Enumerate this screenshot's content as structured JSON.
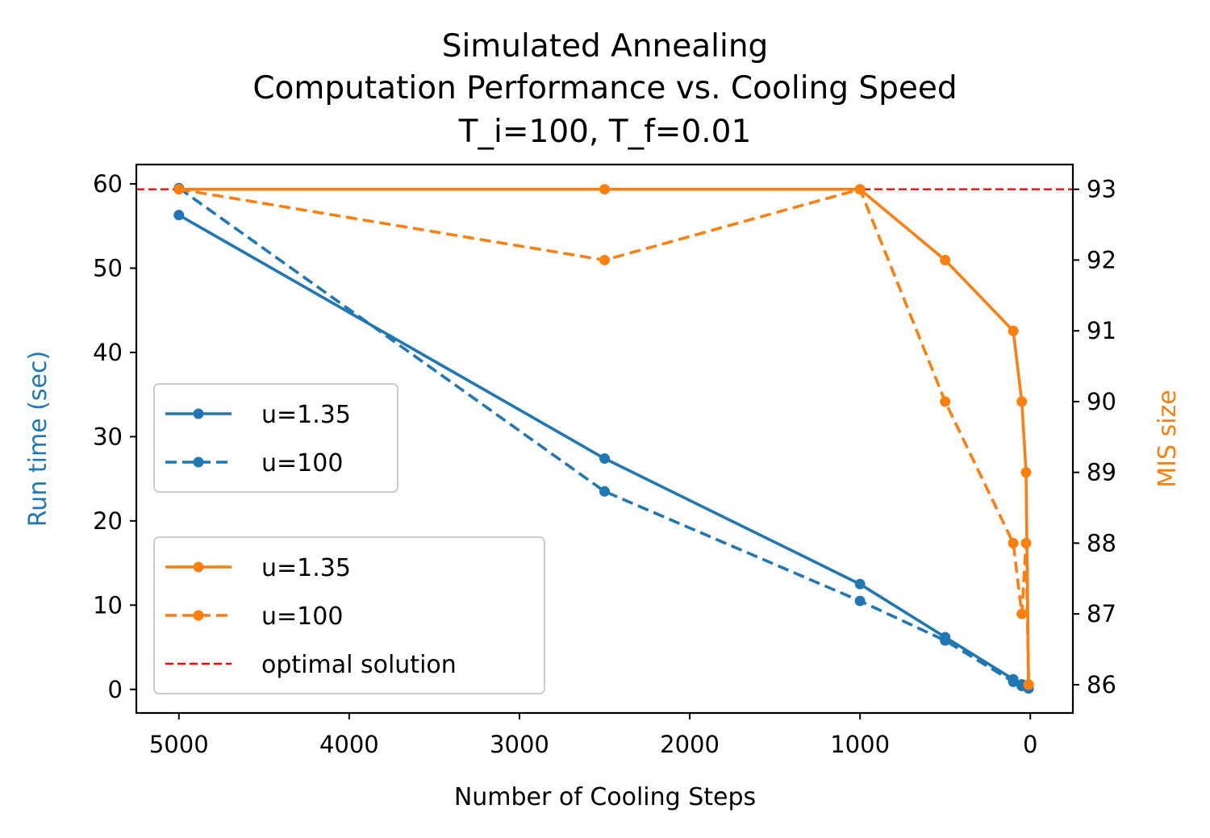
{
  "chart_data": {
    "type": "line",
    "title": [
      "Simulated Annealing",
      "Computation Performance vs. Cooling Speed",
      "T_i=100, T_f=0.01"
    ],
    "xlabel": "Number of Cooling Steps",
    "ylabel_left": "Run time (sec)",
    "ylabel_right": "MIS size",
    "x_inverted": true,
    "xlim": [
      5250,
      -250
    ],
    "ylim_left": [
      -2.8,
      62.3
    ],
    "ylim_right": [
      85.6,
      93.35
    ],
    "x_ticks": [
      5000,
      4000,
      3000,
      2000,
      1000,
      0
    ],
    "y_left_ticks": [
      0,
      10,
      20,
      30,
      40,
      50,
      60
    ],
    "y_right_ticks": [
      86,
      87,
      88,
      89,
      90,
      91,
      92,
      93
    ],
    "grid": false,
    "colors": {
      "runtime": "#1f77b4",
      "mis": "#ff7f0e",
      "optimal": "#ff0000"
    },
    "runtime_series": [
      {
        "name": "u=1.35",
        "style": "solid",
        "axis": "left",
        "x": [
          5000,
          2500,
          1000,
          500,
          100,
          50,
          10
        ],
        "y": [
          56.3,
          27.4,
          12.5,
          6.2,
          1.2,
          0.6,
          0.2
        ]
      },
      {
        "name": "u=100",
        "style": "dashed",
        "axis": "left",
        "x": [
          5000,
          2500,
          1000,
          500,
          100,
          50,
          10
        ],
        "y": [
          59.5,
          23.5,
          10.5,
          5.8,
          0.9,
          0.4,
          0.1
        ]
      }
    ],
    "mis_series": [
      {
        "name": "u=1.35",
        "style": "solid",
        "axis": "right",
        "x": [
          5000,
          2500,
          1000,
          500,
          100,
          50,
          25,
          10
        ],
        "y": [
          93,
          93,
          93,
          92,
          91,
          90,
          89,
          86
        ]
      },
      {
        "name": "u=100",
        "style": "dashed",
        "axis": "right",
        "x": [
          5000,
          2500,
          1000,
          500,
          100,
          50,
          25,
          10
        ],
        "y": [
          93,
          92,
          93,
          90,
          88,
          87,
          88,
          86
        ]
      }
    ],
    "optimal": {
      "name": "optimal solution",
      "style": "dashed",
      "axis": "right",
      "value": 93
    },
    "legends": {
      "runtime": [
        "u=1.35",
        "u=100"
      ],
      "mis": [
        "u=1.35",
        "u=100",
        "optimal solution"
      ],
      "runtime_placement": "center-left",
      "mis_placement": "lower-left"
    }
  }
}
